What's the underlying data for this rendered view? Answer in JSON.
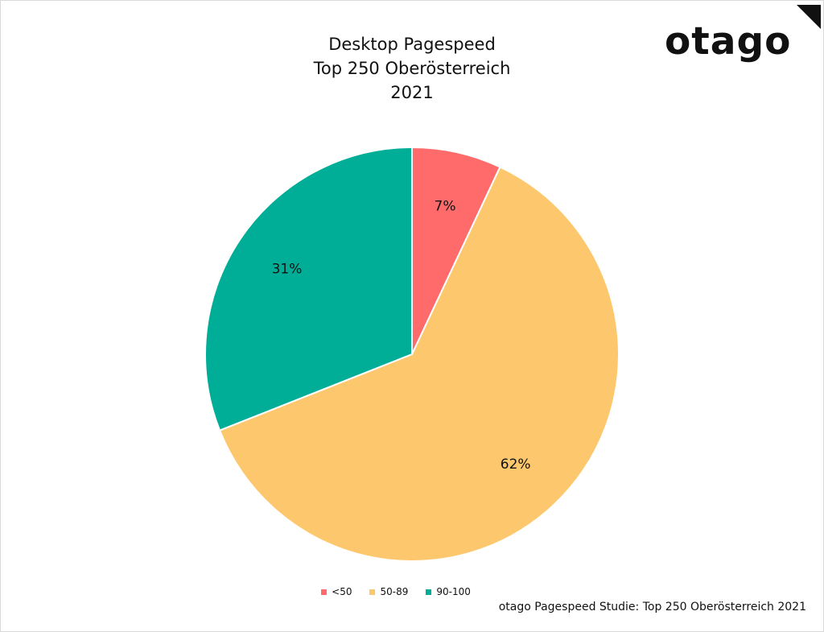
{
  "brand": {
    "logo_text": "otago"
  },
  "chart_data": {
    "type": "pie",
    "title_lines": [
      "Desktop Pagespeed",
      "Top 250 Oberösterreich",
      "2021"
    ],
    "categories": [
      "<50",
      "50-89",
      "90-100"
    ],
    "values": [
      7,
      62,
      31
    ],
    "data_labels": [
      "7%",
      "62%",
      "31%"
    ],
    "colors": [
      "#ff6b6b",
      "#fdc76e",
      "#00ae98"
    ],
    "legend_position": "bottom"
  },
  "source_note": "otago Pagespeed Studie: Top 250 Oberösterreich 2021"
}
